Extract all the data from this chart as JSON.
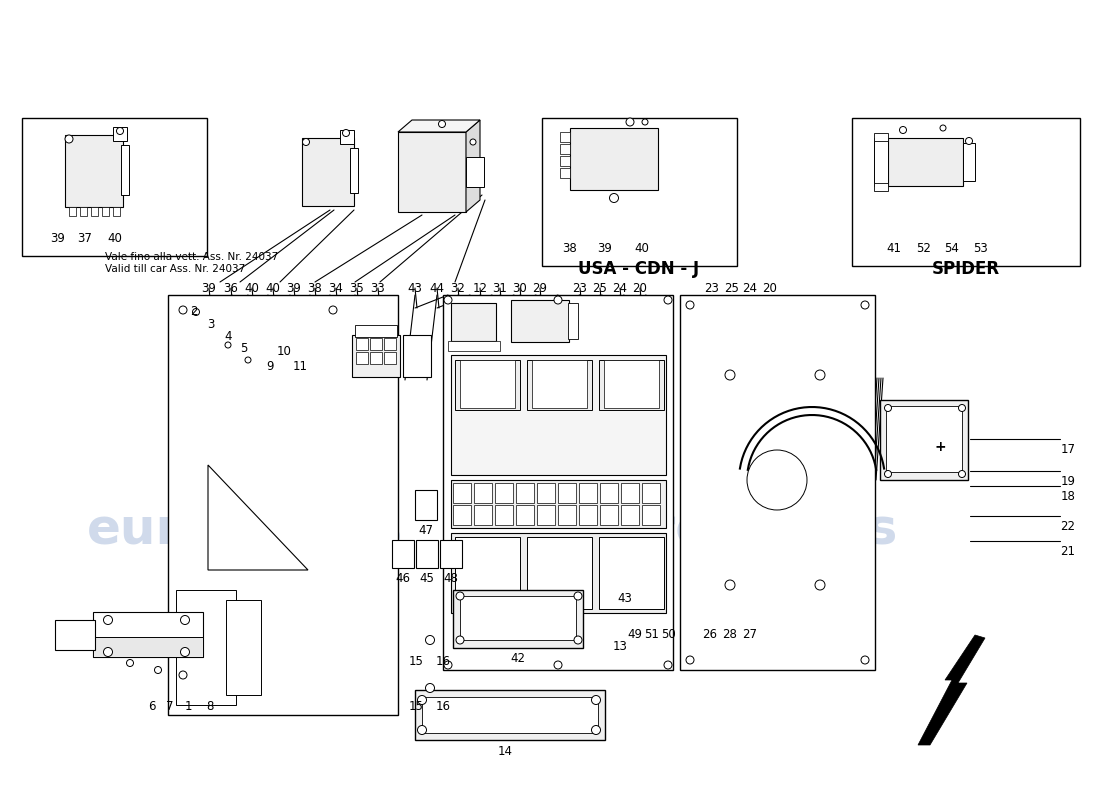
{
  "bg_color": "#ffffff",
  "watermark_color": "#c8d4e8",
  "line_color": "#000000",
  "note_text_it": "Vale fino alla vett. Ass. Nr. 24037",
  "note_text_en": "Valid till car Ass. Nr. 24037",
  "usa_cdn_j_label": "USA - CDN - J",
  "spider_label": "SPIDER",
  "label_fs": 8.5,
  "box1_labels": [
    "39",
    "37",
    "40"
  ],
  "box2_labels": [
    "38",
    "39",
    "40"
  ],
  "box3_labels": [
    "41",
    "52",
    "54",
    "53"
  ],
  "top_row_nums": [
    "39",
    "36",
    "40",
    "40",
    "39",
    "38",
    "34",
    "35",
    "33",
    "43",
    "44",
    "32",
    "12",
    "31",
    "30",
    "29",
    "23",
    "25",
    "24",
    "20"
  ],
  "right_nums": [
    "17",
    "19",
    "18",
    "22",
    "21"
  ],
  "bottom_left_nums": [
    "6",
    "7",
    "1",
    "8"
  ],
  "lower_center_nums": [
    "49",
    "51",
    "50",
    "26",
    "28",
    "27"
  ]
}
